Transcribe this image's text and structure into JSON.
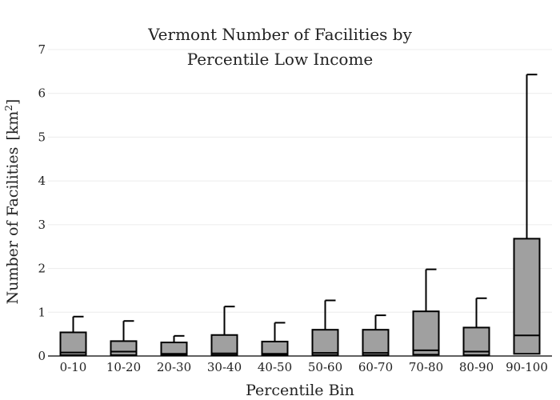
{
  "chart_data": {
    "type": "box",
    "title": [
      "Vermont Number of Facilities by",
      "Percentile Low Income"
    ],
    "xlabel": "Percentile Bin",
    "ylabel": "Number of Facilities",
    "ylabel_unit": "[km",
    "ylabel_unit_sup": "2",
    "ylabel_unit_close": "]",
    "ylim": [
      0,
      7
    ],
    "yticks": [
      0,
      1,
      2,
      3,
      4,
      5,
      6,
      7
    ],
    "grid": true,
    "categories": [
      "0-10",
      "10-20",
      "20-30",
      "30-40",
      "40-50",
      "50-60",
      "60-70",
      "70-80",
      "80-90",
      "90-100"
    ],
    "boxes": [
      {
        "min": 0,
        "q1": 0.02,
        "median": 0.08,
        "q3": 0.54,
        "max": 0.9
      },
      {
        "min": 0,
        "q1": 0.02,
        "median": 0.1,
        "q3": 0.34,
        "max": 0.8
      },
      {
        "min": 0,
        "q1": 0.02,
        "median": 0.05,
        "q3": 0.31,
        "max": 0.46
      },
      {
        "min": 0,
        "q1": 0.02,
        "median": 0.06,
        "q3": 0.48,
        "max": 1.13
      },
      {
        "min": 0,
        "q1": 0.02,
        "median": 0.05,
        "q3": 0.33,
        "max": 0.76
      },
      {
        "min": 0,
        "q1": 0.02,
        "median": 0.07,
        "q3": 0.6,
        "max": 1.27
      },
      {
        "min": 0,
        "q1": 0.02,
        "median": 0.07,
        "q3": 0.6,
        "max": 0.93
      },
      {
        "min": 0,
        "q1": 0.03,
        "median": 0.13,
        "q3": 1.02,
        "max": 1.98
      },
      {
        "min": 0,
        "q1": 0.02,
        "median": 0.1,
        "q3": 0.65,
        "max": 1.32
      },
      {
        "min": 0,
        "q1": 0.05,
        "median": 0.47,
        "q3": 2.68,
        "max": 6.43
      }
    ]
  }
}
